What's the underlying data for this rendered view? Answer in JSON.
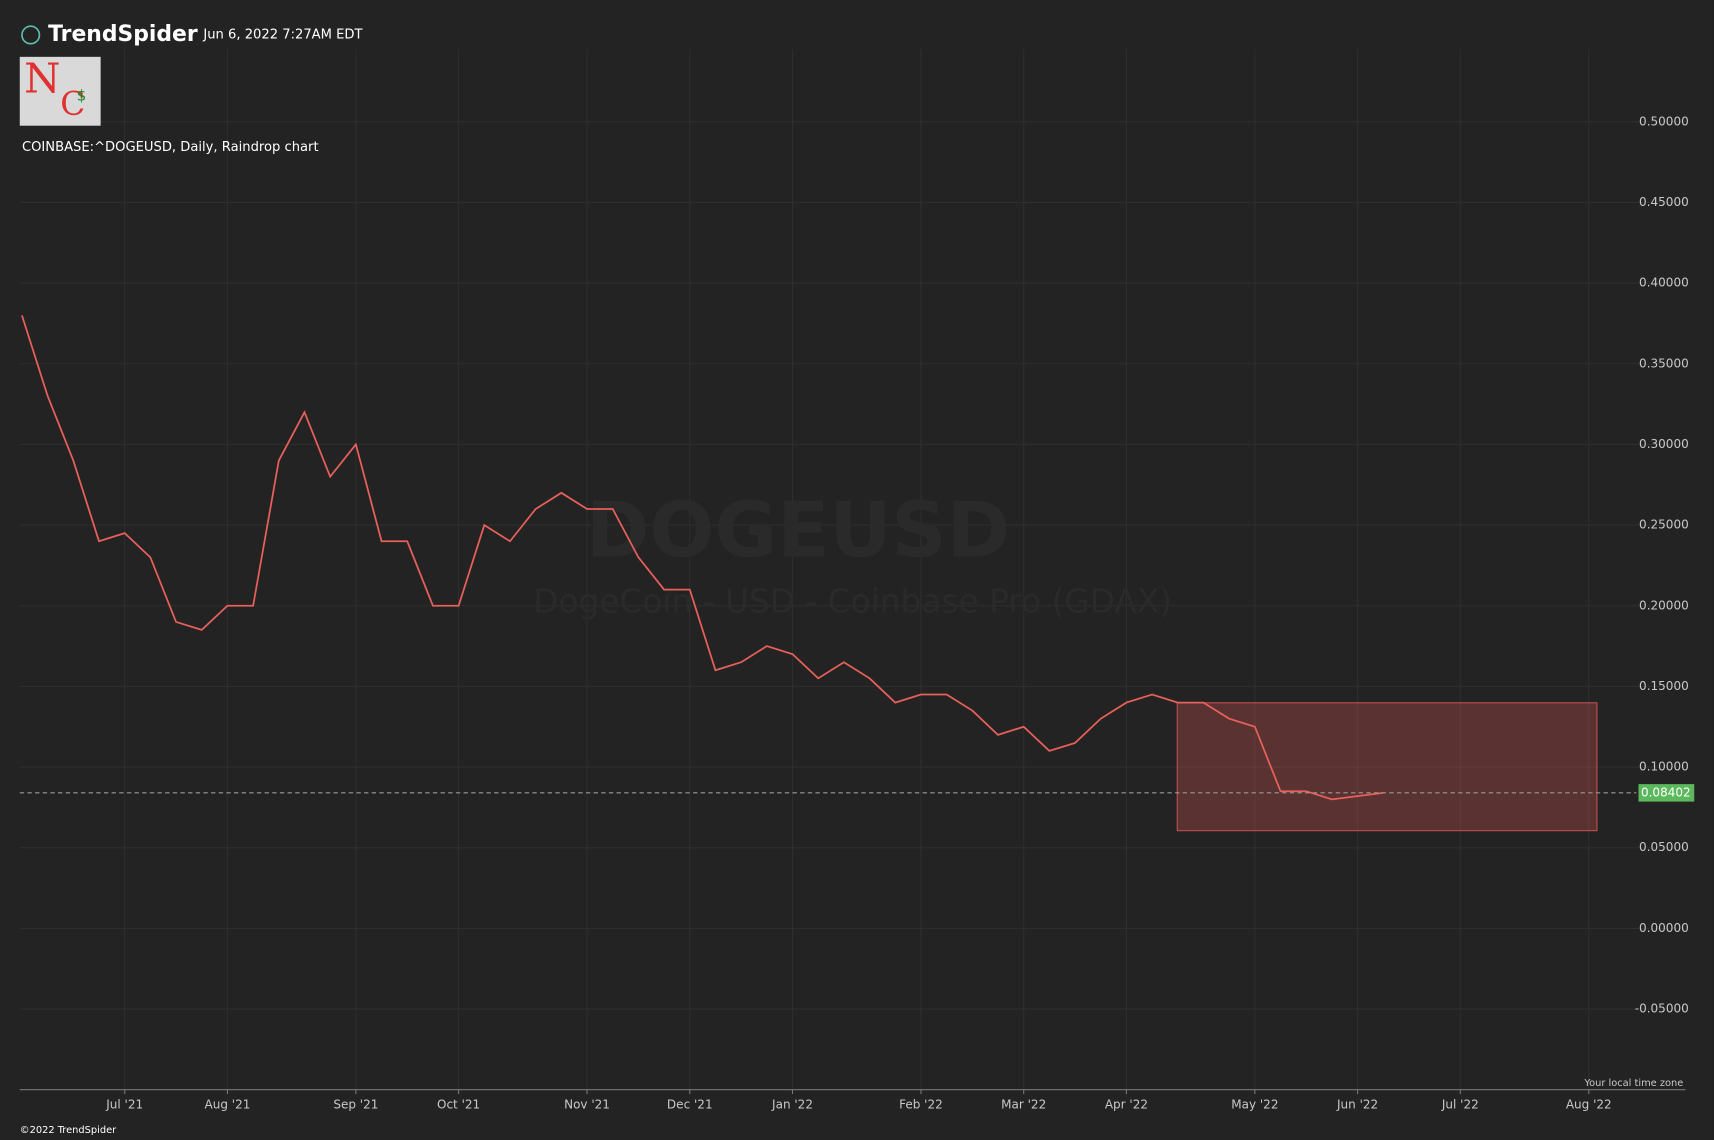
{
  "header": {
    "brand": "TrendSpider",
    "timestamp": "Jun 6, 2022 7:27AM EDT",
    "logo": [
      "N",
      "C",
      "$"
    ]
  },
  "footer": {
    "copyright": "©2022 TrendSpider",
    "timezone": "Your local time zone"
  },
  "chart_data": {
    "type": "line",
    "title": "COINBASE:^DOGEUSD, Daily, Raindrop chart",
    "watermark": "DOGEUSD",
    "watermark_subtitle": "DogeCoin - USD - Coinbase Pro (GDAX)",
    "categories": [
      null,
      null,
      null,
      null,
      "Jul '21",
      null,
      null,
      null,
      "Aug '21",
      null,
      null,
      null,
      null,
      "Sep '21",
      null,
      null,
      null,
      "Oct '21",
      null,
      null,
      null,
      null,
      "Nov '21",
      null,
      null,
      null,
      "Dec '21",
      null,
      null,
      null,
      "Jan '22",
      null,
      null,
      null,
      null,
      "Feb '22",
      null,
      null,
      null,
      "Mar '22",
      null,
      null,
      null,
      "Apr '22",
      null,
      null,
      null,
      null,
      "May '22",
      null,
      null,
      null,
      "Jun '22",
      null,
      null,
      null,
      "Jul '22",
      null,
      null,
      null,
      null,
      "Aug '22",
      null,
      null,
      null
    ],
    "series": [
      {
        "name": "DOGEUSD",
        "color": "#e8605a",
        "values": [
          0.38,
          0.33,
          0.29,
          0.24,
          0.245,
          0.23,
          0.19,
          0.185,
          0.2,
          0.2,
          0.29,
          0.32,
          0.28,
          0.3,
          0.24,
          0.24,
          0.2,
          0.2,
          0.25,
          0.24,
          0.26,
          0.27,
          0.26,
          0.26,
          0.23,
          0.21,
          0.21,
          0.16,
          0.165,
          0.175,
          0.17,
          0.155,
          0.165,
          0.155,
          0.14,
          0.145,
          0.145,
          0.135,
          0.12,
          0.125,
          0.11,
          0.115,
          0.13,
          0.14,
          0.145,
          0.14,
          0.14,
          0.13,
          0.125,
          0.085,
          0.085,
          0.08,
          0.082,
          0.084,
          null,
          null,
          null,
          null,
          null,
          null,
          null,
          null,
          null,
          null,
          null
        ]
      }
    ],
    "current_price": 0.08402,
    "current_price_color": "#5cb85c",
    "ylim": [
      -0.1,
      0.545
    ],
    "yticks": [
      {
        "value": -0.05,
        "label": "-0.05000"
      },
      {
        "value": 0,
        "label": "0.00000"
      },
      {
        "value": 0.05,
        "label": "0.05000"
      },
      {
        "value": 0.1,
        "label": "0.10000"
      },
      {
        "value": 0.15,
        "label": "0.15000"
      },
      {
        "value": 0.2,
        "label": "0.20000"
      },
      {
        "value": 0.25,
        "label": "0.25000"
      },
      {
        "value": 0.3,
        "label": "0.30000"
      },
      {
        "value": 0.35,
        "label": "0.35000"
      },
      {
        "value": 0.4,
        "label": "0.40000"
      },
      {
        "value": 0.45,
        "label": "0.45000"
      },
      {
        "value": 0.5,
        "label": "0.50000"
      }
    ],
    "grid": true
  }
}
